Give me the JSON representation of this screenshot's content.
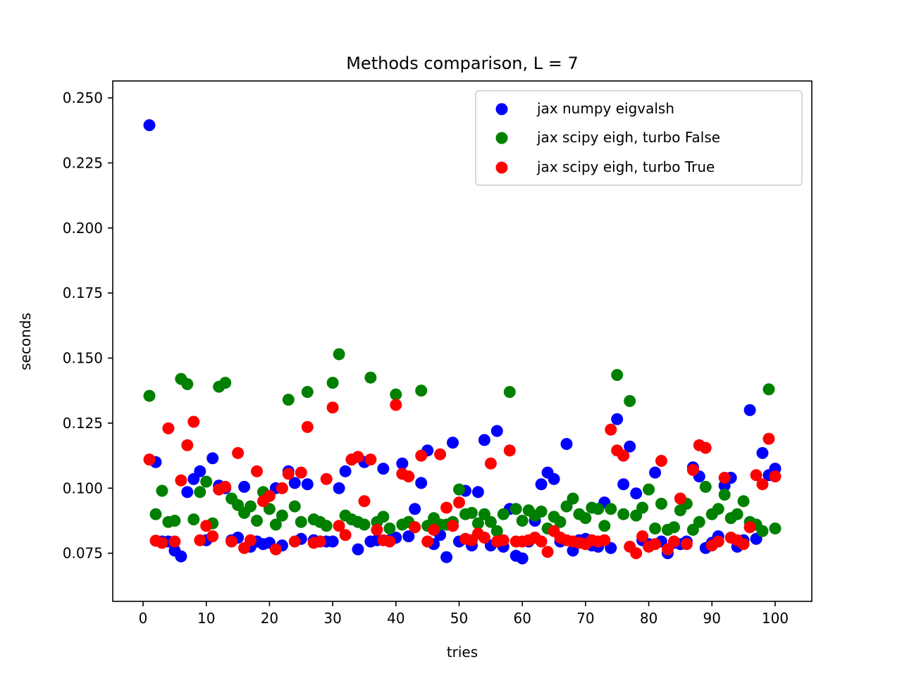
{
  "chart_data": {
    "type": "scatter",
    "title": "Methods comparison, L = 7",
    "xlabel": "tries",
    "ylabel": "seconds",
    "xlim": [
      -4.8,
      105.8
    ],
    "ylim": [
      0.0565,
      0.2565
    ],
    "xticks": [
      0,
      10,
      20,
      30,
      40,
      50,
      60,
      70,
      80,
      90,
      100
    ],
    "yticks": [
      0.075,
      0.1,
      0.125,
      0.15,
      0.175,
      0.2,
      0.225,
      0.25
    ],
    "ytick_labels": [
      "0.075",
      "0.100",
      "0.125",
      "0.150",
      "0.175",
      "0.200",
      "0.225",
      "0.250"
    ],
    "grid": false,
    "legend_position": "top-right",
    "x": [
      1,
      2,
      3,
      4,
      5,
      6,
      7,
      8,
      9,
      10,
      11,
      12,
      13,
      14,
      15,
      16,
      17,
      18,
      19,
      20,
      21,
      22,
      23,
      24,
      25,
      26,
      27,
      28,
      29,
      30,
      31,
      32,
      33,
      34,
      35,
      36,
      37,
      38,
      39,
      40,
      41,
      42,
      43,
      44,
      45,
      46,
      47,
      48,
      49,
      50,
      51,
      52,
      53,
      54,
      55,
      56,
      57,
      58,
      59,
      60,
      61,
      62,
      63,
      64,
      65,
      66,
      67,
      68,
      69,
      70,
      71,
      72,
      73,
      74,
      75,
      76,
      77,
      78,
      79,
      80,
      81,
      82,
      83,
      84,
      85,
      86,
      87,
      88,
      89,
      90,
      91,
      92,
      93,
      94,
      95,
      96,
      97,
      98,
      99,
      100
    ],
    "series": [
      {
        "name": "jax numpy eigvalsh",
        "color": "#0000ff",
        "values": [
          0.2395,
          0.11,
          0.0795,
          0.0795,
          0.076,
          0.0738,
          0.0985,
          0.1035,
          0.1065,
          0.08,
          0.1115,
          0.101,
          0.1,
          0.08,
          0.081,
          0.1005,
          0.0775,
          0.0795,
          0.0785,
          0.079,
          0.1,
          0.078,
          0.1065,
          0.102,
          0.0805,
          0.1015,
          0.08,
          0.0795,
          0.0795,
          0.0795,
          0.1,
          0.1065,
          0.111,
          0.0765,
          0.11,
          0.0795,
          0.08,
          0.1075,
          0.08,
          0.081,
          0.1095,
          0.0815,
          0.092,
          0.102,
          0.1145,
          0.0785,
          0.082,
          0.0735,
          0.1175,
          0.0795,
          0.099,
          0.078,
          0.0985,
          0.1185,
          0.078,
          0.122,
          0.0775,
          0.092,
          0.074,
          0.073,
          0.0795,
          0.0875,
          0.1015,
          0.106,
          0.1035,
          0.0795,
          0.117,
          0.076,
          0.08,
          0.0805,
          0.078,
          0.0775,
          0.0945,
          0.077,
          0.1265,
          0.1015,
          0.116,
          0.098,
          0.08,
          0.0785,
          0.106,
          0.0795,
          0.075,
          0.079,
          0.0785,
          0.0795,
          0.108,
          0.1045,
          0.077,
          0.079,
          0.0815,
          0.101,
          0.104,
          0.0775,
          0.08,
          0.13,
          0.0805,
          0.1135,
          0.105,
          0.1075
        ]
      },
      {
        "name": "jax scipy eigh, turbo False",
        "color": "#008000",
        "values": [
          0.1355,
          0.09,
          0.099,
          0.087,
          0.0875,
          0.142,
          0.14,
          0.088,
          0.0985,
          0.1025,
          0.0865,
          0.139,
          0.1405,
          0.096,
          0.0935,
          0.0905,
          0.093,
          0.0875,
          0.0985,
          0.092,
          0.086,
          0.0895,
          0.134,
          0.093,
          0.087,
          0.137,
          0.088,
          0.087,
          0.0855,
          0.1405,
          0.1515,
          0.0895,
          0.088,
          0.087,
          0.086,
          0.1425,
          0.087,
          0.089,
          0.0845,
          0.136,
          0.086,
          0.087,
          0.085,
          0.1375,
          0.0855,
          0.0885,
          0.086,
          0.086,
          0.087,
          0.0995,
          0.09,
          0.0905,
          0.0865,
          0.09,
          0.087,
          0.0835,
          0.09,
          0.137,
          0.092,
          0.0875,
          0.0915,
          0.0895,
          0.091,
          0.0845,
          0.089,
          0.087,
          0.093,
          0.096,
          0.09,
          0.0885,
          0.0925,
          0.092,
          0.0855,
          0.092,
          0.1435,
          0.09,
          0.1335,
          0.0895,
          0.0925,
          0.0995,
          0.0845,
          0.094,
          0.084,
          0.085,
          0.0915,
          0.094,
          0.084,
          0.087,
          0.1005,
          0.09,
          0.092,
          0.0975,
          0.0885,
          0.09,
          0.095,
          0.087,
          0.086,
          0.0835,
          0.138,
          0.0845
        ]
      },
      {
        "name": "jax scipy eigh, turbo True",
        "color": "#ff0000",
        "values": [
          0.111,
          0.0798,
          0.079,
          0.123,
          0.0795,
          0.103,
          0.1165,
          0.1255,
          0.08,
          0.0855,
          0.0815,
          0.0995,
          0.1005,
          0.0795,
          0.1135,
          0.077,
          0.08,
          0.1065,
          0.095,
          0.097,
          0.0765,
          0.1,
          0.1055,
          0.0795,
          0.106,
          0.1235,
          0.079,
          0.0795,
          0.1035,
          0.131,
          0.0855,
          0.082,
          0.111,
          0.112,
          0.095,
          0.111,
          0.084,
          0.08,
          0.0795,
          0.132,
          0.1055,
          0.1045,
          0.085,
          0.1125,
          0.0795,
          0.084,
          0.113,
          0.0925,
          0.0855,
          0.0945,
          0.0805,
          0.08,
          0.0825,
          0.081,
          0.1095,
          0.0795,
          0.08,
          0.1145,
          0.0795,
          0.0795,
          0.08,
          0.081,
          0.0795,
          0.0755,
          0.0835,
          0.081,
          0.08,
          0.0795,
          0.079,
          0.0785,
          0.08,
          0.0795,
          0.08,
          0.1225,
          0.1145,
          0.1125,
          0.0775,
          0.075,
          0.0815,
          0.0775,
          0.0785,
          0.1105,
          0.0765,
          0.0795,
          0.096,
          0.0785,
          0.107,
          0.1165,
          0.1155,
          0.078,
          0.0795,
          0.104,
          0.081,
          0.08,
          0.0785,
          0.085,
          0.105,
          0.1015,
          0.119,
          0.1045
        ]
      }
    ]
  }
}
